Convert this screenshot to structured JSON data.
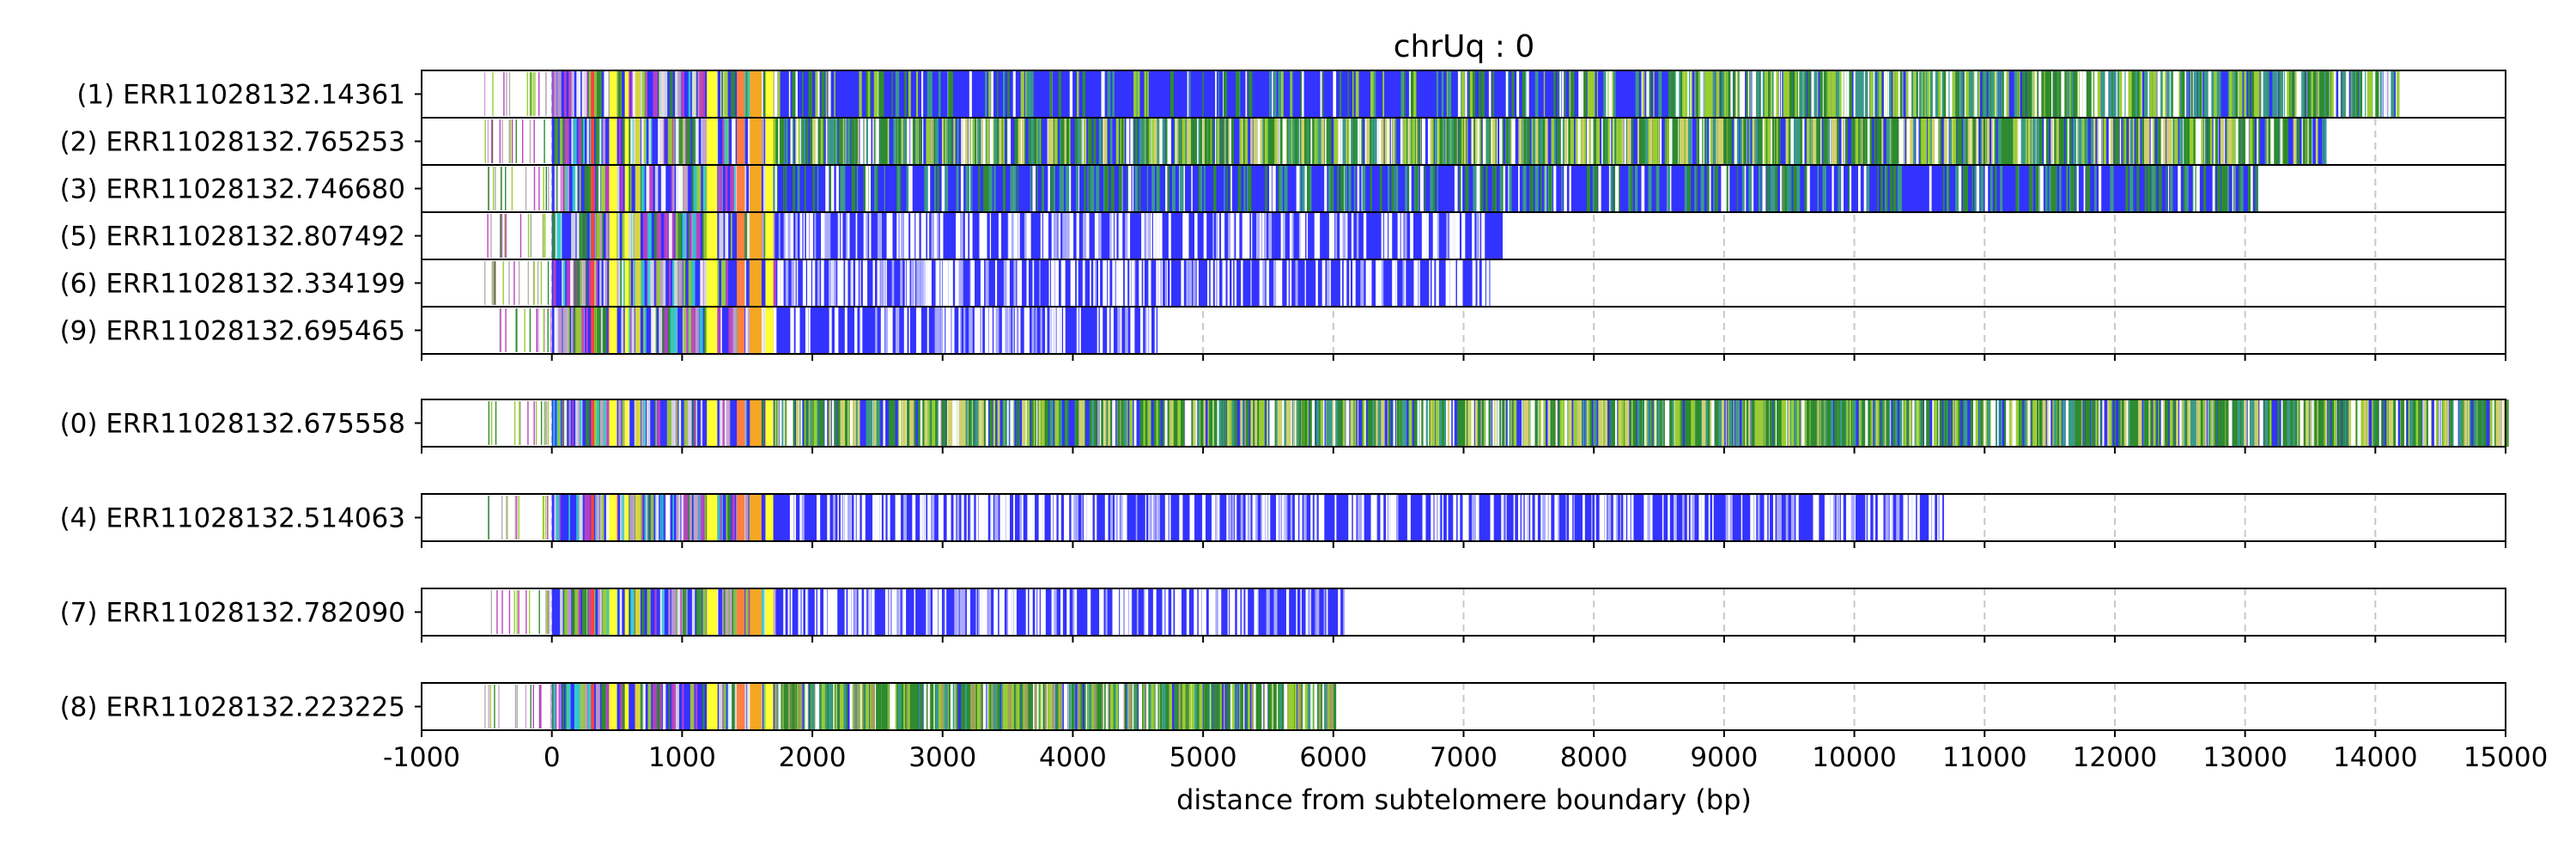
{
  "chart_data": {
    "type": "heatmap",
    "title": "chrUq : 0",
    "xlabel": "distance from subtelomere boundary (bp)",
    "ylabel": "",
    "xlim": [
      -1000,
      15000
    ],
    "xticks": [
      -1000,
      0,
      1000,
      2000,
      3000,
      4000,
      5000,
      6000,
      7000,
      8000,
      9000,
      10000,
      11000,
      12000,
      13000,
      14000,
      15000
    ],
    "tick_labels": [
      "-1000",
      "0",
      "1000",
      "2000",
      "3000",
      "4000",
      "5000",
      "6000",
      "7000",
      "8000",
      "9000",
      "10000",
      "11000",
      "12000",
      "13000",
      "14000",
      "15000"
    ],
    "grid": "vertical dashed at x ticks",
    "colors": {
      "base": "#3333ff",
      "yellow": "#ffff33",
      "orange": "#f5a623",
      "green": "#2e8b2e",
      "magenta": "#c040c0",
      "cyan": "#33cccc",
      "white": "#ffffff",
      "grid": "#c8c8c8"
    },
    "groups": [
      {
        "reads": [
          {
            "label": "(1) ERR11028132.14361",
            "end": 14180,
            "pattern": "green_tail"
          },
          {
            "label": "(2) ERR11028132.765253",
            "end": 13620,
            "pattern": "green_heavy"
          },
          {
            "label": "(3) ERR11028132.746680",
            "end": 13100,
            "pattern": "green_light"
          },
          {
            "label": "(5) ERR11028132.807492",
            "end": 7300,
            "pattern": "white_gaps"
          },
          {
            "label": "(6) ERR11028132.334199",
            "end": 7200,
            "pattern": "white_gaps"
          },
          {
            "label": "(9) ERR11028132.695465",
            "end": 4650,
            "pattern": "white_gaps"
          }
        ]
      },
      {
        "reads": [
          {
            "label": "(0) ERR11028132.675558",
            "end": 15000,
            "pattern": "green_heavy"
          }
        ]
      },
      {
        "reads": [
          {
            "label": "(4) ERR11028132.514063",
            "end": 10700,
            "pattern": "white_gaps"
          }
        ]
      },
      {
        "reads": [
          {
            "label": "(7) ERR11028132.782090",
            "end": 6100,
            "pattern": "white_gaps"
          }
        ]
      },
      {
        "reads": [
          {
            "label": "(8) ERR11028132.223225",
            "end": 6000,
            "pattern": "green_mixed"
          }
        ]
      }
    ]
  }
}
